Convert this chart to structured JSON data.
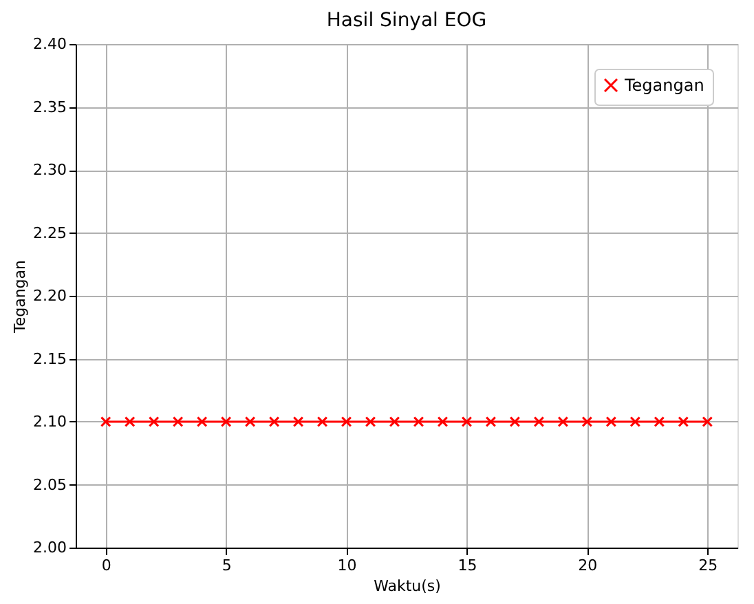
{
  "chart_data": {
    "type": "line",
    "title": "Hasil Sinyal EOG",
    "xlabel": "Waktu(s)",
    "ylabel": "Tegangan",
    "x": [
      0,
      1,
      2,
      3,
      4,
      5,
      6,
      7,
      8,
      9,
      10,
      11,
      12,
      13,
      14,
      15,
      16,
      17,
      18,
      19,
      20,
      21,
      22,
      23,
      24,
      25
    ],
    "series": [
      {
        "name": "Tegangan",
        "color": "#ff0000",
        "values": [
          2.1,
          2.1,
          2.1,
          2.1,
          2.1,
          2.1,
          2.1,
          2.1,
          2.1,
          2.1,
          2.1,
          2.1,
          2.1,
          2.1,
          2.1,
          2.1,
          2.1,
          2.1,
          2.1,
          2.1,
          2.1,
          2.1,
          2.1,
          2.1,
          2.1,
          2.1
        ]
      }
    ],
    "xlim": [
      -1.25,
      26.25
    ],
    "xticks": [
      0,
      5,
      10,
      15,
      20,
      25
    ],
    "ylim": [
      2.0,
      2.4
    ],
    "yticks": [
      {
        "value": 2.0,
        "label": "2.00"
      },
      2.05,
      {
        "value": 2.1,
        "label": "2.10"
      },
      2.15,
      {
        "value": 2.2,
        "label": "2.20"
      },
      2.25,
      {
        "value": 2.3,
        "label": "2.30"
      },
      2.35,
      {
        "value": 2.4,
        "label": "2.40"
      }
    ],
    "grid": true,
    "legend": "top right",
    "marker": "cross",
    "line_style": "solid"
  }
}
